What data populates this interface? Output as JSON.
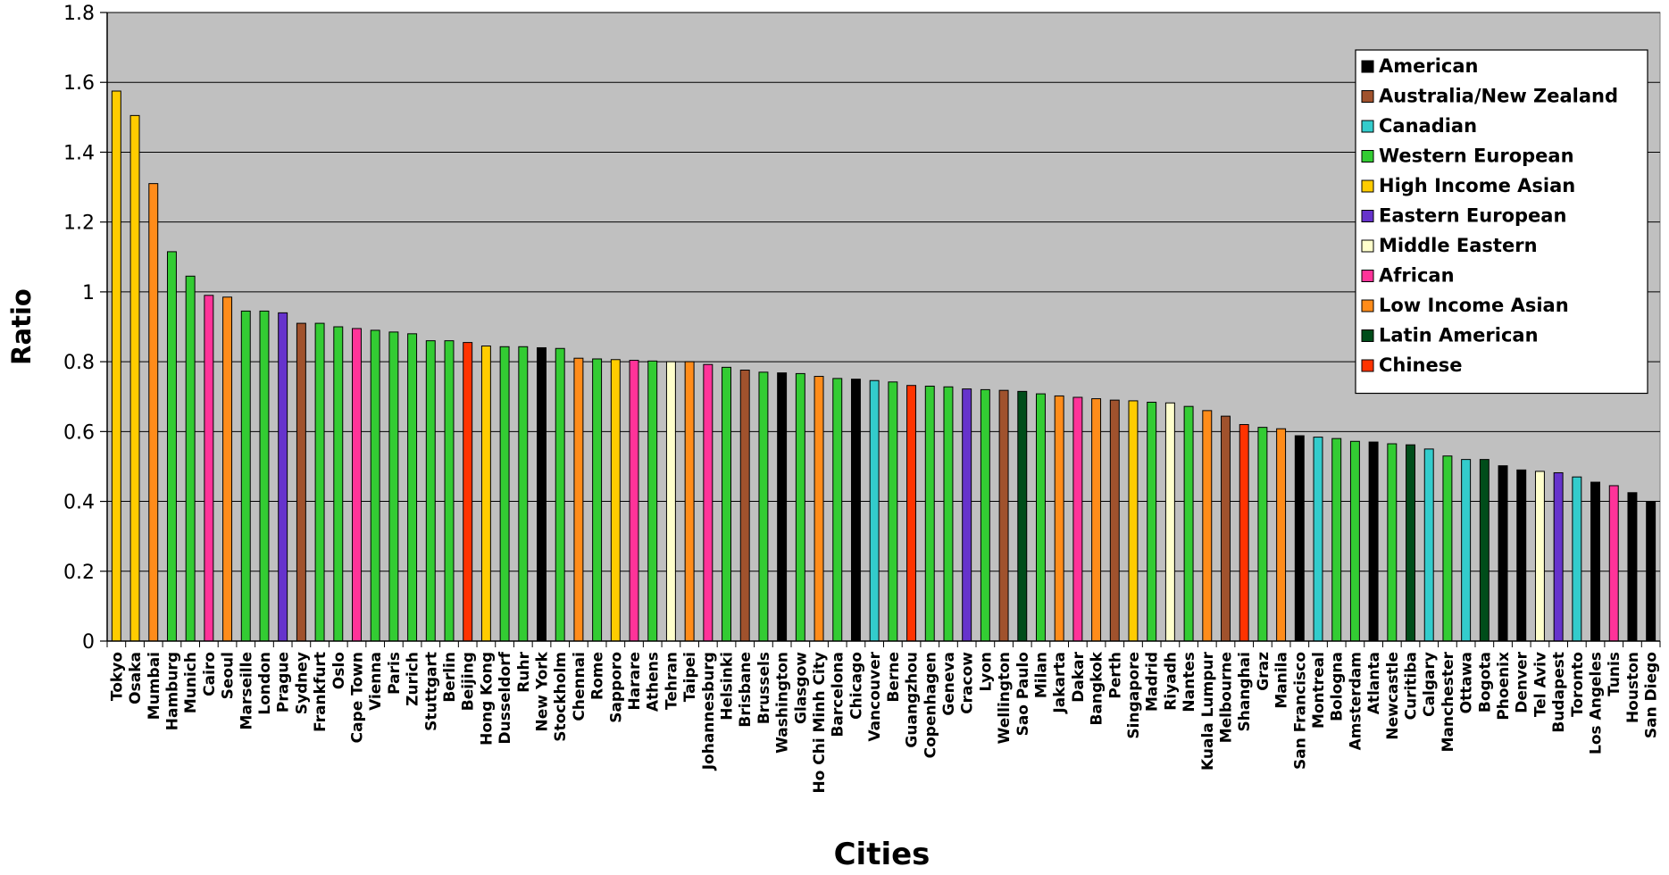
{
  "chart_data": {
    "type": "bar",
    "title": "",
    "xlabel": "Cities",
    "ylabel": "Ratio",
    "ylim": [
      0,
      1.8
    ],
    "yticks": [
      "0",
      "0.2",
      "0.4",
      "0.6",
      "0.8",
      "1",
      "1.2",
      "1.4",
      "1.6",
      "1.8"
    ],
    "grid": true,
    "legend_position": "top-right",
    "legend": [
      {
        "name": "American",
        "color": "#000000"
      },
      {
        "name": "Australia/New Zealand",
        "color": "#A0522D"
      },
      {
        "name": "Canadian",
        "color": "#33CCCC"
      },
      {
        "name": "Western European",
        "color": "#33CC33"
      },
      {
        "name": "High Income Asian",
        "color": "#FFCC00"
      },
      {
        "name": "Eastern European",
        "color": "#6633CC"
      },
      {
        "name": "Middle Eastern",
        "color": "#FFFFCC"
      },
      {
        "name": "African",
        "color": "#FF3399"
      },
      {
        "name": "Low Income Asian",
        "color": "#FF8C1A"
      },
      {
        "name": "Latin American",
        "color": "#004D1A"
      },
      {
        "name": "Chinese",
        "color": "#FF3300"
      }
    ],
    "categories": [
      "Tokyo",
      "Osaka",
      "Mumbai",
      "Hamburg",
      "Munich",
      "Cairo",
      "Seoul",
      "Marseille",
      "London",
      "Prague",
      "Sydney",
      "Frankfurt",
      "Oslo",
      "Cape Town",
      "Vienna",
      "Paris",
      "Zurich",
      "Stuttgart",
      "Berlin",
      "Beijing",
      "Hong Kong",
      "Dusseldorf",
      "Ruhr",
      "New York",
      "Stockholm",
      "Chennai",
      "Rome",
      "Sapporo",
      "Harare",
      "Athens",
      "Tehran",
      "Taipei",
      "Johannesburg",
      "Helsinki",
      "Brisbane",
      "Brussels",
      "Washington",
      "Glasgow",
      "Ho Chi Minh City",
      "Barcelona",
      "Chicago",
      "Vancouver",
      "Berne",
      "Guangzhou",
      "Copenhagen",
      "Geneva",
      "Cracow",
      "Lyon",
      "Wellington",
      "Sao Paulo",
      "Milan",
      "Jakarta",
      "Dakar",
      "Bangkok",
      "Perth",
      "Singapore",
      "Madrid",
      "Riyadh",
      "Nantes",
      "Kuala Lumpur",
      "Melbourne",
      "Shanghai",
      "Graz",
      "Manila",
      "San Francisco",
      "Montreal",
      "Bologna",
      "Amsterdam",
      "Atlanta",
      "Newcastle",
      "Curitiba",
      "Calgary",
      "Manchester",
      "Ottawa",
      "Bogota",
      "Phoenix",
      "Denver",
      "Tel Aviv",
      "Budapest",
      "Toronto",
      "Los Angeles",
      "Tunis",
      "Houston",
      "San Diego"
    ],
    "values": [
      1.575,
      1.505,
      1.31,
      1.115,
      1.045,
      0.99,
      0.985,
      0.945,
      0.945,
      0.94,
      0.91,
      0.91,
      0.9,
      0.895,
      0.89,
      0.885,
      0.88,
      0.86,
      0.86,
      0.855,
      0.845,
      0.843,
      0.843,
      0.84,
      0.838,
      0.81,
      0.808,
      0.806,
      0.804,
      0.802,
      0.8,
      0.8,
      0.792,
      0.784,
      0.776,
      0.77,
      0.768,
      0.766,
      0.758,
      0.752,
      0.75,
      0.746,
      0.742,
      0.732,
      0.73,
      0.728,
      0.722,
      0.72,
      0.718,
      0.715,
      0.708,
      0.702,
      0.698,
      0.694,
      0.69,
      0.688,
      0.684,
      0.682,
      0.672,
      0.66,
      0.644,
      0.62,
      0.612,
      0.608,
      0.588,
      0.584,
      0.58,
      0.572,
      0.57,
      0.565,
      0.562,
      0.55,
      0.53,
      0.52,
      0.52,
      0.502,
      0.49,
      0.486,
      0.482,
      0.47,
      0.455,
      0.445,
      0.425,
      0.4
    ],
    "groups": [
      "High Income Asian",
      "High Income Asian",
      "Low Income Asian",
      "Western European",
      "Western European",
      "African",
      "Low Income Asian",
      "Western European",
      "Western European",
      "Eastern European",
      "Australia/New Zealand",
      "Western European",
      "Western European",
      "African",
      "Western European",
      "Western European",
      "Western European",
      "Western European",
      "Western European",
      "Chinese",
      "High Income Asian",
      "Western European",
      "Western European",
      "American",
      "Western European",
      "Low Income Asian",
      "Western European",
      "High Income Asian",
      "African",
      "Western European",
      "Middle Eastern",
      "Low Income Asian",
      "African",
      "Western European",
      "Australia/New Zealand",
      "Western European",
      "American",
      "Western European",
      "Low Income Asian",
      "Western European",
      "American",
      "Canadian",
      "Western European",
      "Chinese",
      "Western European",
      "Western European",
      "Eastern European",
      "Western European",
      "Australia/New Zealand",
      "Latin American",
      "Western European",
      "Low Income Asian",
      "African",
      "Low Income Asian",
      "Australia/New Zealand",
      "High Income Asian",
      "Western European",
      "Middle Eastern",
      "Western European",
      "Low Income Asian",
      "Australia/New Zealand",
      "Chinese",
      "Western European",
      "Low Income Asian",
      "American",
      "Canadian",
      "Western European",
      "Western European",
      "American",
      "Western European",
      "Latin American",
      "Canadian",
      "Western European",
      "Canadian",
      "Latin American",
      "American",
      "American",
      "Middle Eastern",
      "Eastern European",
      "Canadian",
      "American",
      "African",
      "American",
      "American"
    ],
    "colors": {
      "plot_background": "#C0C0C0",
      "gridline": "#000000"
    }
  }
}
